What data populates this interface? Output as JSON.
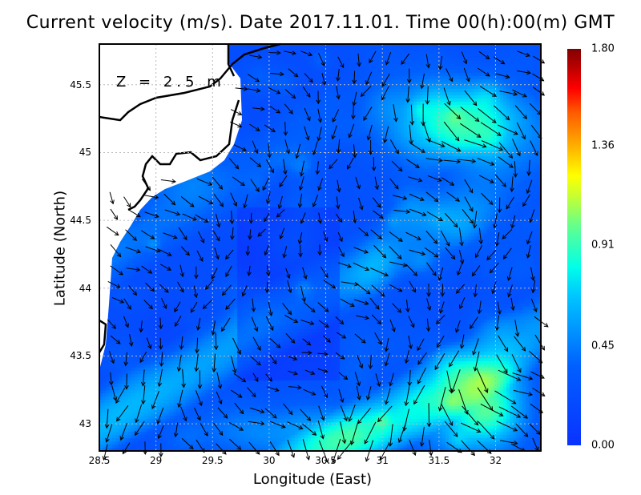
{
  "title": "Current velocity (m/s). Date 2017.11.01. Time 00(h):00(m) GMT",
  "depth_label": "Z = 2.5 m",
  "chart_data": {
    "type": "heatmap",
    "variable": "Current velocity (m/s)",
    "xlabel": "Longitude (East)",
    "ylabel": "Latitude (North)",
    "xlim": [
      28.5,
      32.4
    ],
    "ylim": [
      42.8,
      45.8
    ],
    "xticks": [
      "28.5",
      "29",
      "29.5",
      "30",
      "30.5",
      "31",
      "31.5",
      "32"
    ],
    "yticks": [
      "45.5",
      "45",
      "44.5",
      "44",
      "43.5",
      "43"
    ],
    "grid": true,
    "colorbar": {
      "ticks": [
        "1.80",
        "1.36",
        "0.91",
        "0.45",
        "0.00"
      ],
      "range": [
        0.0,
        1.8
      ],
      "colormap": "jet",
      "placement": "right"
    },
    "vectors": "current direction arrows, predominantly southwestward"
  },
  "colors": {
    "land": "#ffffff",
    "coast": "#000000",
    "low": "#0a32ff",
    "high": "#800000"
  }
}
